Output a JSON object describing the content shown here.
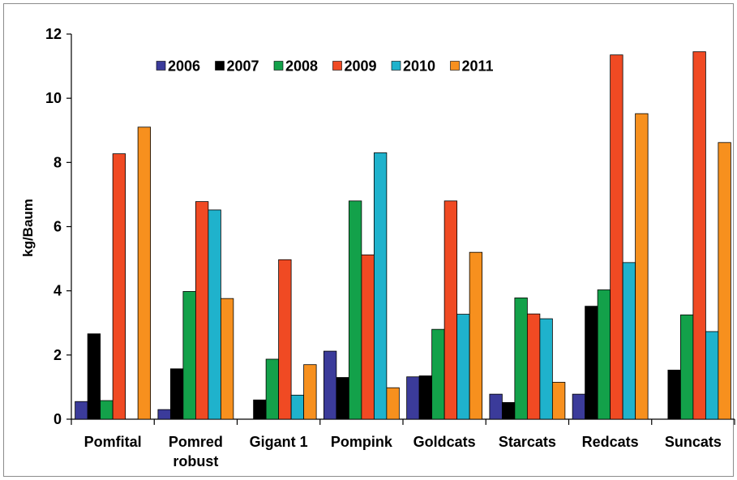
{
  "chart_data": {
    "type": "bar",
    "title": "",
    "xlabel": "",
    "ylabel": "kg/Baum",
    "ylim": [
      0,
      12
    ],
    "yticks": [
      0,
      2,
      4,
      6,
      8,
      10,
      12
    ],
    "grid": false,
    "legend_position": "top",
    "categories": [
      [
        "Pomfital"
      ],
      [
        "Pomred",
        "robust"
      ],
      [
        "Gigant 1"
      ],
      [
        "Pompink"
      ],
      [
        "Goldcats"
      ],
      [
        "Starcats"
      ],
      [
        "Redcats"
      ],
      [
        "Suncats"
      ]
    ],
    "series": [
      {
        "name": "2006",
        "color": "#3b3b9a",
        "values": [
          0.55,
          0.3,
          0,
          2.12,
          1.32,
          0.78,
          0.78,
          0
        ]
      },
      {
        "name": "2007",
        "color": "#000000",
        "values": [
          2.66,
          1.57,
          0.6,
          1.3,
          1.35,
          0.52,
          3.52,
          1.53
        ]
      },
      {
        "name": "2008",
        "color": "#13a14a",
        "values": [
          0.58,
          3.98,
          1.87,
          6.8,
          2.8,
          3.78,
          4.03,
          3.25
        ]
      },
      {
        "name": "2009",
        "color": "#f04a23",
        "values": [
          8.27,
          6.78,
          4.97,
          5.12,
          6.8,
          3.28,
          11.35,
          11.45
        ]
      },
      {
        "name": "2010",
        "color": "#1fb2cc",
        "values": [
          0,
          6.52,
          0.75,
          8.3,
          3.27,
          3.13,
          4.88,
          2.73
        ]
      },
      {
        "name": "2011",
        "color": "#f7901e",
        "values": [
          9.1,
          3.76,
          1.7,
          0.98,
          5.2,
          1.15,
          9.52,
          8.62
        ]
      }
    ]
  }
}
